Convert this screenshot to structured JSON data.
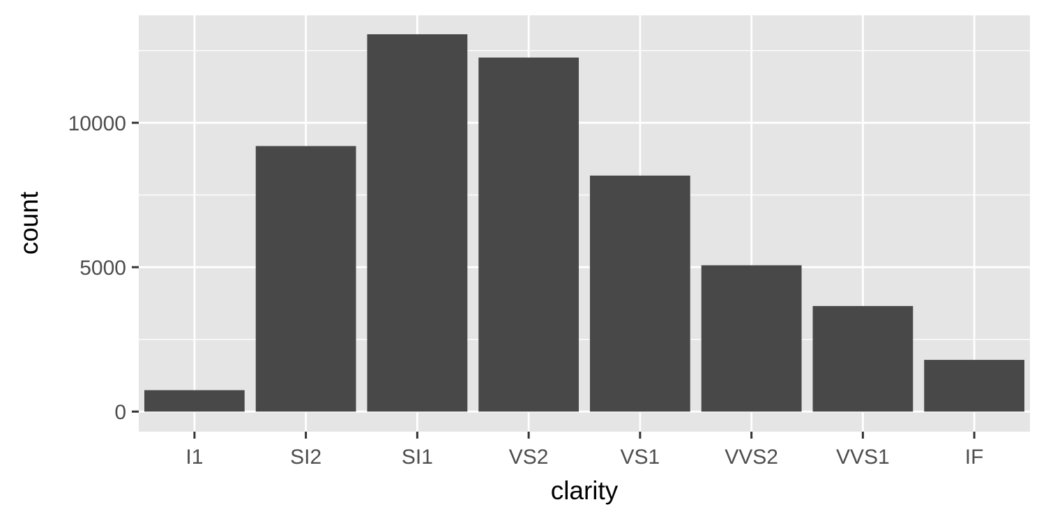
{
  "chart_data": {
    "type": "bar",
    "title": "",
    "xlabel": "clarity",
    "ylabel": "count",
    "categories": [
      "I1",
      "SI2",
      "SI1",
      "VS2",
      "VS1",
      "VVS2",
      "VVS1",
      "IF"
    ],
    "values": [
      741,
      9194,
      13065,
      12258,
      8171,
      5066,
      3655,
      1790
    ],
    "ylim": [
      -695,
      13720
    ],
    "yticks": [
      0,
      5000,
      10000
    ],
    "ytick_labels": [
      "0",
      "5000",
      "10000"
    ],
    "grid": true,
    "legend": "none",
    "colors": {
      "bar": "#484848",
      "panel_background": "#e5e5e5",
      "grid": "#ffffff",
      "tick_mark": "#333333",
      "tick_text": "#4d4d4d",
      "axis_title": "#000000"
    }
  }
}
